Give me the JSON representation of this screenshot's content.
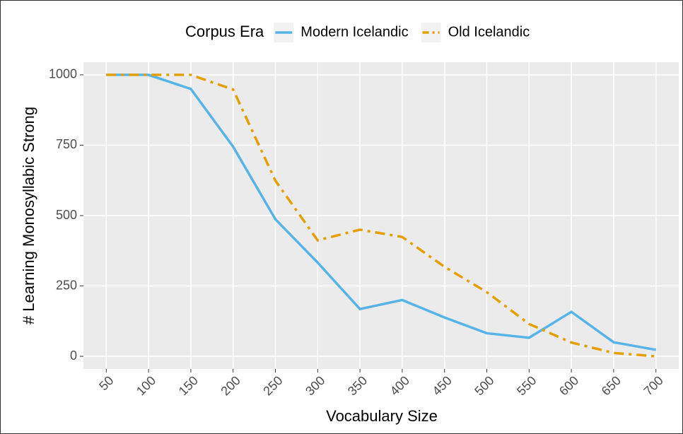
{
  "chart_data": {
    "type": "line",
    "x_label": "Vocabulary Size",
    "y_label": "# Learning Monosyllabic Strong",
    "legend_title": "Corpus Era",
    "legend_position": "top",
    "grid": true,
    "x": [
      50,
      100,
      150,
      200,
      250,
      300,
      350,
      400,
      450,
      500,
      550,
      600,
      650,
      700
    ],
    "series": [
      {
        "name": "Modern Icelandic",
        "color": "#56b4e9",
        "dash": "solid",
        "values": [
          1000,
          1000,
          950,
          745,
          487,
          333,
          168,
          200,
          138,
          82,
          66,
          158,
          50,
          23
        ]
      },
      {
        "name": "Old Icelandic",
        "color": "#e69f00",
        "dash": "dotdash",
        "values": [
          1000,
          1000,
          1000,
          948,
          624,
          412,
          450,
          424,
          318,
          228,
          115,
          49,
          12,
          0
        ]
      }
    ],
    "xlim": [
      23,
      727
    ],
    "ylim": [
      -45,
      1045
    ],
    "xticks": [
      50,
      100,
      150,
      200,
      250,
      300,
      350,
      400,
      450,
      500,
      550,
      600,
      650,
      700
    ],
    "yticks": [
      0,
      250,
      500,
      750,
      1000
    ]
  }
}
